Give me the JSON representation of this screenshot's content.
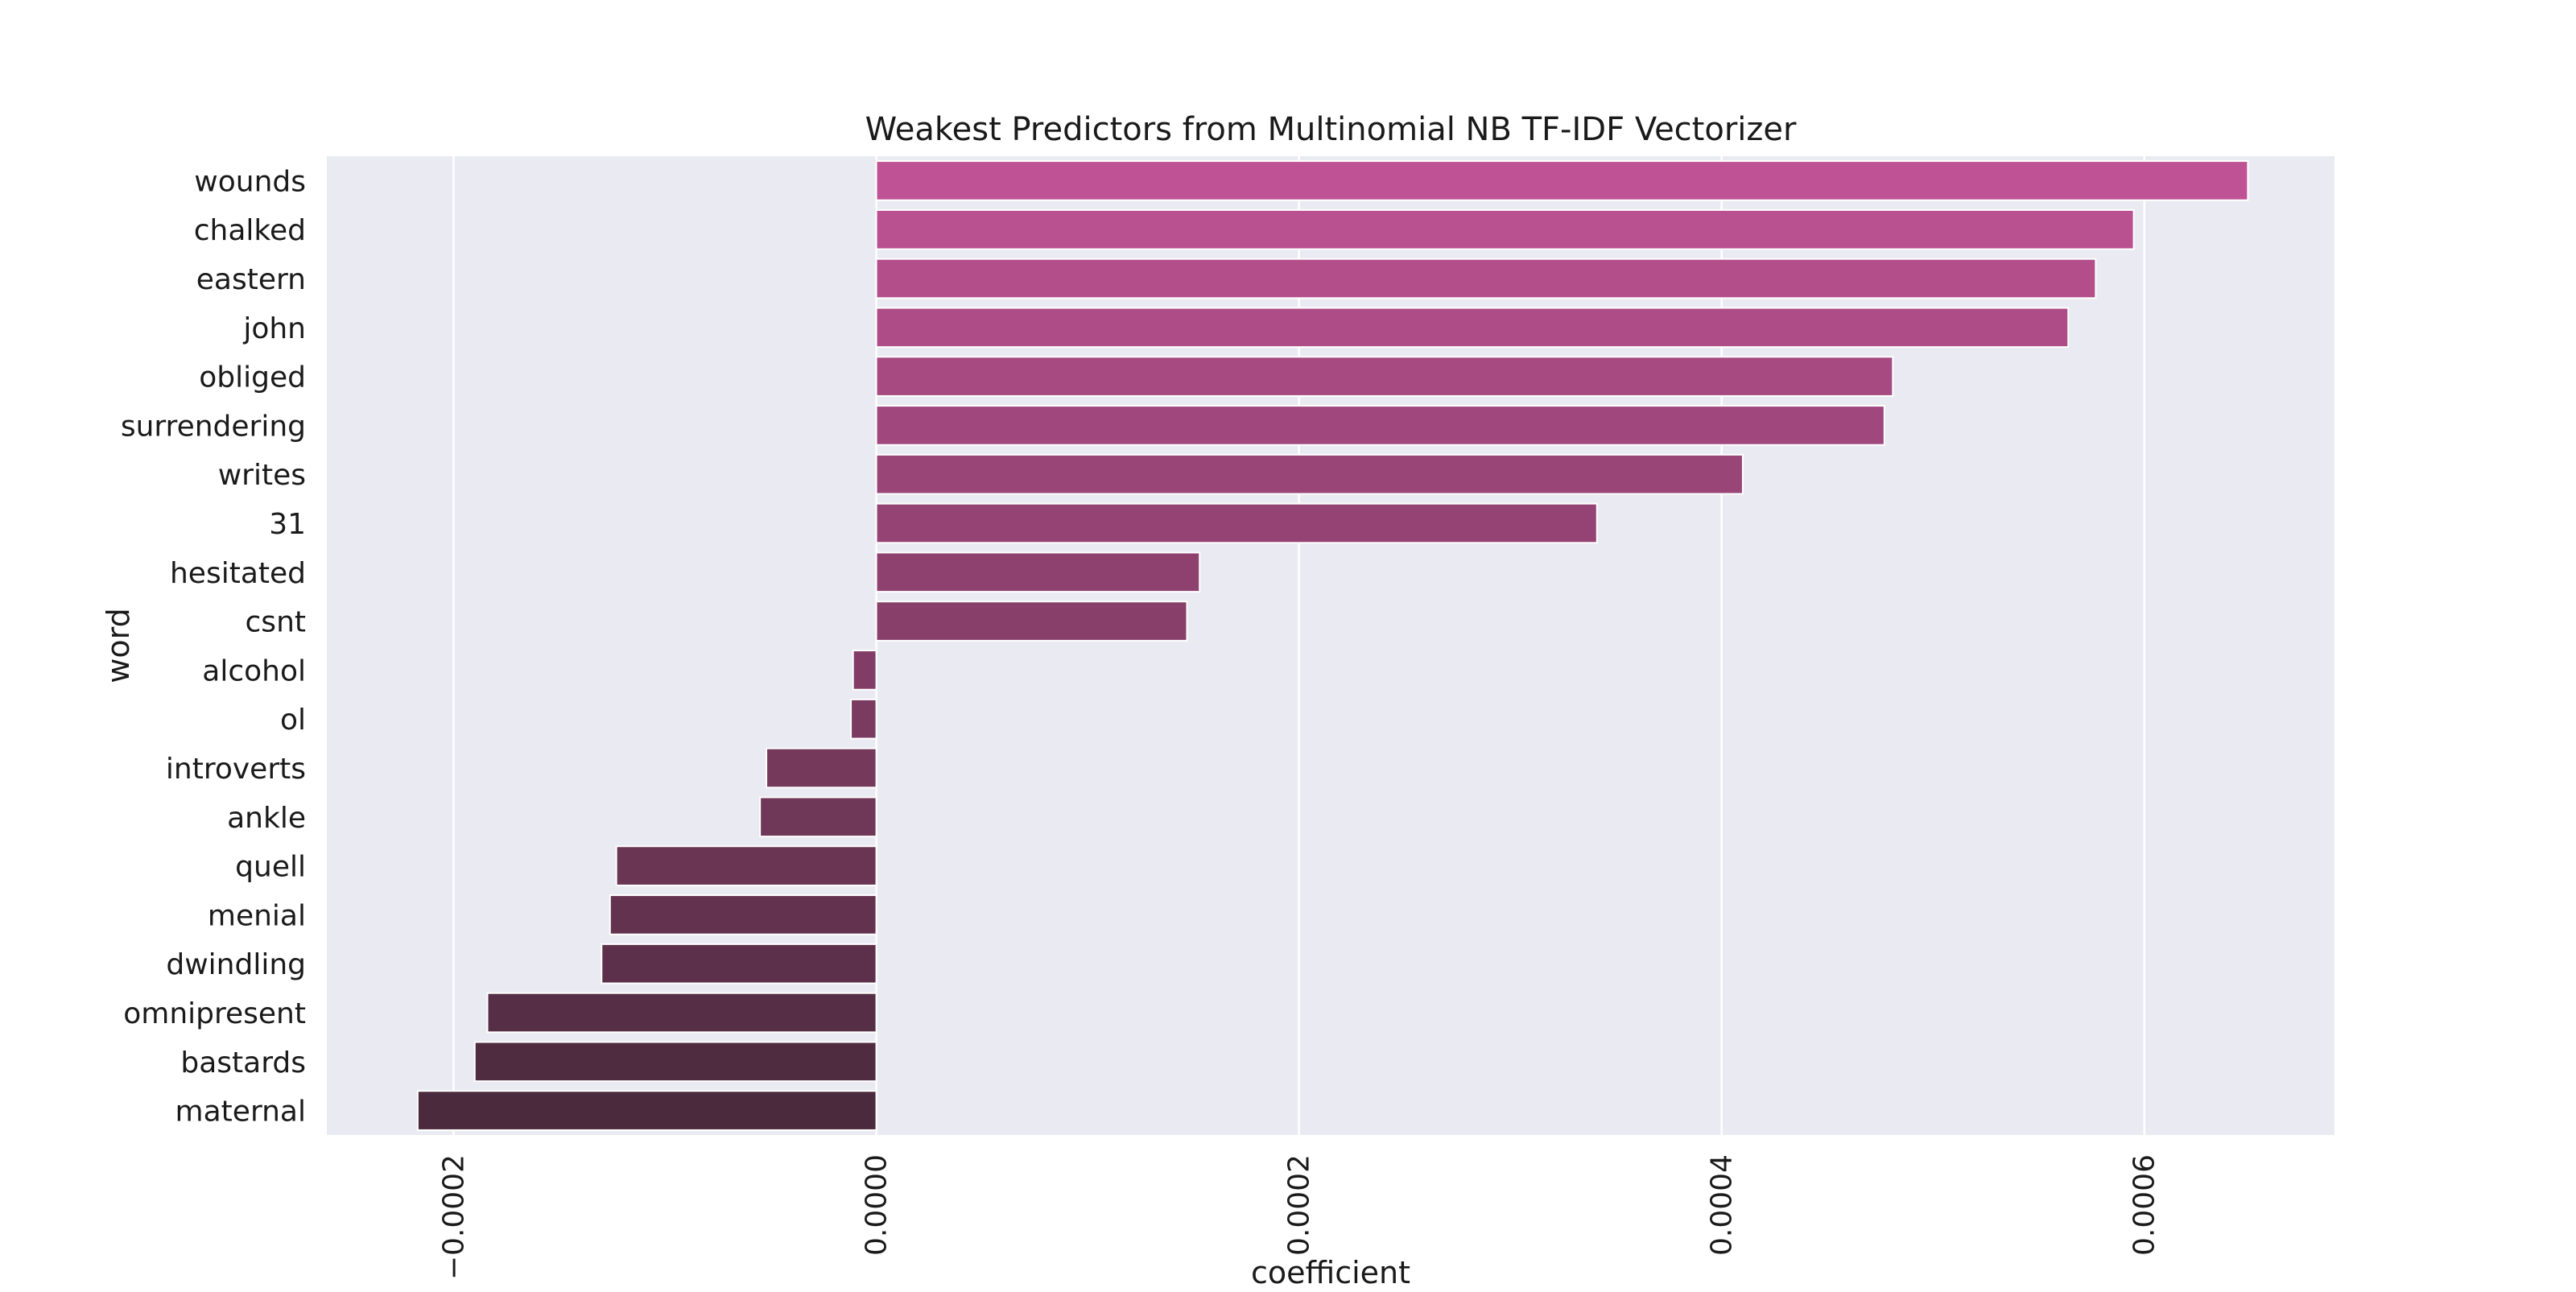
{
  "chart_data": {
    "type": "bar",
    "orientation": "horizontal",
    "title": "Weakest Predictors from Multinomial NB TF-IDF Vectorizer",
    "xlabel": "coefficient",
    "ylabel": "word",
    "categories": [
      "wounds",
      "chalked",
      "eastern",
      "john",
      "obliged",
      "surrendering",
      "writes",
      "31",
      "hesitated",
      "csnt",
      "alcohol",
      "ol",
      "introverts",
      "ankle",
      "quell",
      "menial",
      "dwindling",
      "omnipresent",
      "bastards",
      "maternal"
    ],
    "values": [
      0.000649,
      0.000595,
      0.000577,
      0.000564,
      0.000481,
      0.000477,
      0.00041,
      0.000341,
      0.000153,
      0.000147,
      -1.1e-05,
      -1.2e-05,
      -5.2e-05,
      -5.5e-05,
      -0.000123,
      -0.000126,
      -0.00013,
      -0.000184,
      -0.00019,
      -0.000217
    ],
    "xticks": [
      -0.0002,
      0.0,
      0.0002,
      0.0004,
      0.0006
    ],
    "xtick_labels": [
      "−0.0002",
      "0.0000",
      "0.0002",
      "0.0004",
      "0.0006"
    ],
    "xlim": [
      -0.00026,
      0.00069
    ],
    "grid": true,
    "colors": {
      "background": "#eaeaf2",
      "grid": "#ffffff",
      "bar_start": "#bf5294",
      "bar_end": "#4a2a3c"
    }
  }
}
